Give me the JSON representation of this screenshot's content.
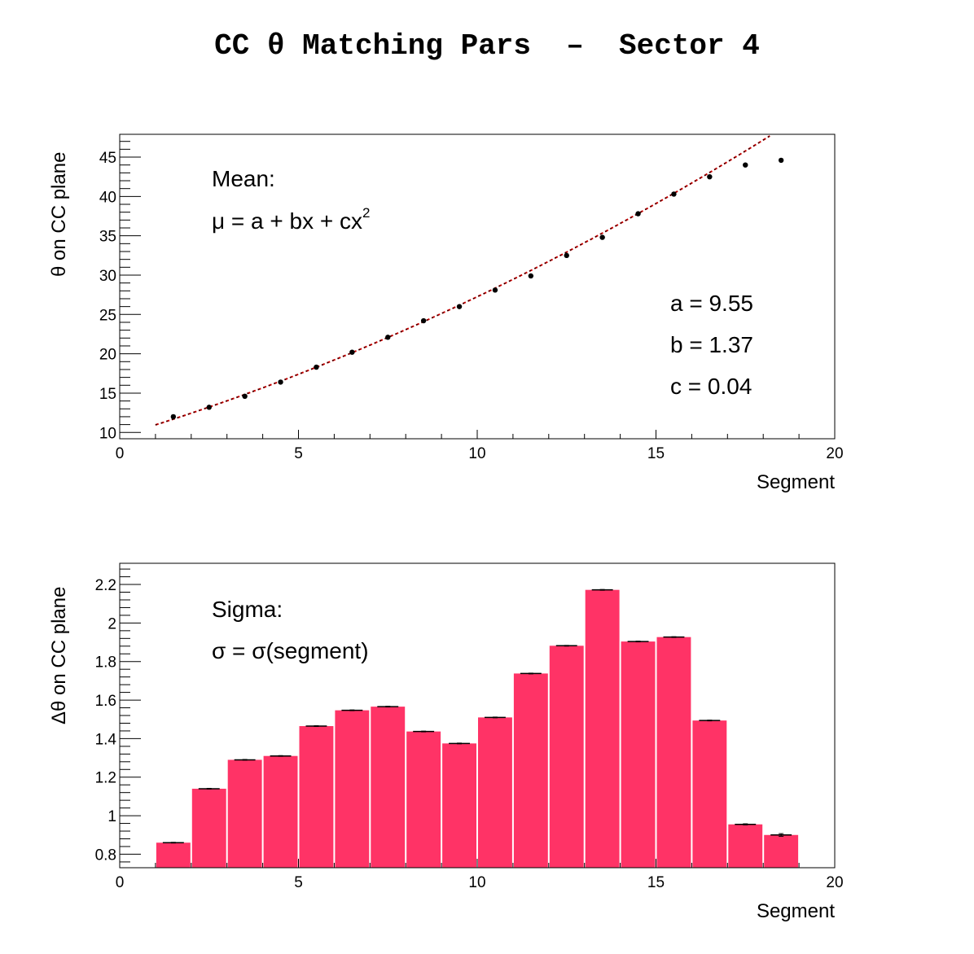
{
  "title": "CC θ Matching Pars  –  Sector 4",
  "chart_data": [
    {
      "type": "scatter",
      "panel": "mean",
      "xlabel": "Segment",
      "ylabel": "θ on CC plane",
      "xlim": [
        0,
        20
      ],
      "ylim": [
        9.2,
        47.9
      ],
      "xticks": [
        0,
        5,
        10,
        15,
        20
      ],
      "yticks": [
        10,
        15,
        20,
        25,
        30,
        35,
        40,
        45
      ],
      "x": [
        1.5,
        2.5,
        3.5,
        4.5,
        5.5,
        6.5,
        7.5,
        8.5,
        9.5,
        10.5,
        11.5,
        12.5,
        13.5,
        14.5,
        15.5,
        16.5,
        17.5,
        18.5
      ],
      "values": [
        12.0,
        13.2,
        14.6,
        16.4,
        18.3,
        20.2,
        22.1,
        24.2,
        26.0,
        28.1,
        29.9,
        32.5,
        34.8,
        37.8,
        40.3,
        42.5,
        44.0,
        44.6
      ],
      "fit": {
        "type": "quadratic",
        "a": 9.55,
        "b": 1.37,
        "c": 0.04,
        "xrange": [
          1,
          18.9
        ],
        "color": "#cc0000"
      },
      "annotations": {
        "heading": "Mean:",
        "formula": "μ = a + bx + cx",
        "formula_sup": "2",
        "param_a": "a = 9.55",
        "param_b": "b = 1.37",
        "param_c": "c = 0.04"
      }
    },
    {
      "type": "bar",
      "panel": "sigma",
      "xlabel": "Segment",
      "ylabel": "Δθ on CC plane",
      "xlim": [
        0,
        20
      ],
      "ylim": [
        0.73,
        2.31
      ],
      "xticks": [
        0,
        5,
        10,
        15,
        20
      ],
      "yticks": [
        0.8,
        1,
        1.2,
        1.4,
        1.6,
        1.8,
        2,
        2.2
      ],
      "bin_edges": [
        1,
        2,
        3,
        4,
        5,
        6,
        7,
        8,
        9,
        10,
        11,
        12,
        13,
        14,
        15,
        16,
        17,
        18,
        19
      ],
      "values": [
        0.86,
        1.14,
        1.29,
        1.31,
        1.465,
        1.547,
        1.566,
        1.437,
        1.375,
        1.51,
        1.738,
        1.882,
        2.172,
        1.904,
        1.927,
        1.494,
        0.955,
        0.9
      ],
      "errors": [
        0.002,
        0.002,
        0.002,
        0.002,
        0.002,
        0.002,
        0.002,
        0.002,
        0.002,
        0.002,
        0.002,
        0.002,
        0.002,
        0.002,
        0.002,
        0.002,
        0.003,
        0.007
      ],
      "bar_color": "#ff3366",
      "annotations": {
        "heading": "Sigma:",
        "formula": "σ = σ(segment)"
      }
    }
  ]
}
